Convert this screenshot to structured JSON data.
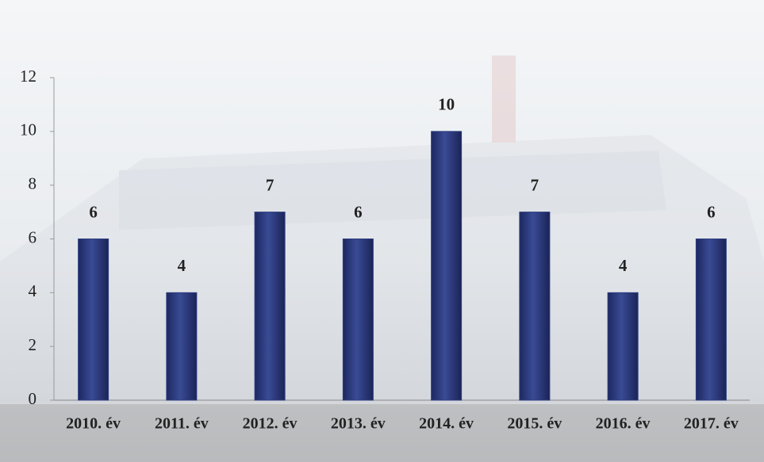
{
  "chart_data": {
    "type": "bar",
    "categories": [
      "2010. év",
      "2011. év",
      "2012. év",
      "2013. év",
      "2014. év",
      "2015. év",
      "2016. év",
      "2017. év"
    ],
    "values": [
      6,
      4,
      7,
      6,
      10,
      7,
      4,
      6
    ],
    "color": "#2e3d80",
    "ylim": [
      0,
      12
    ],
    "yticks": [
      0,
      2,
      4,
      6,
      8,
      10,
      12
    ]
  }
}
